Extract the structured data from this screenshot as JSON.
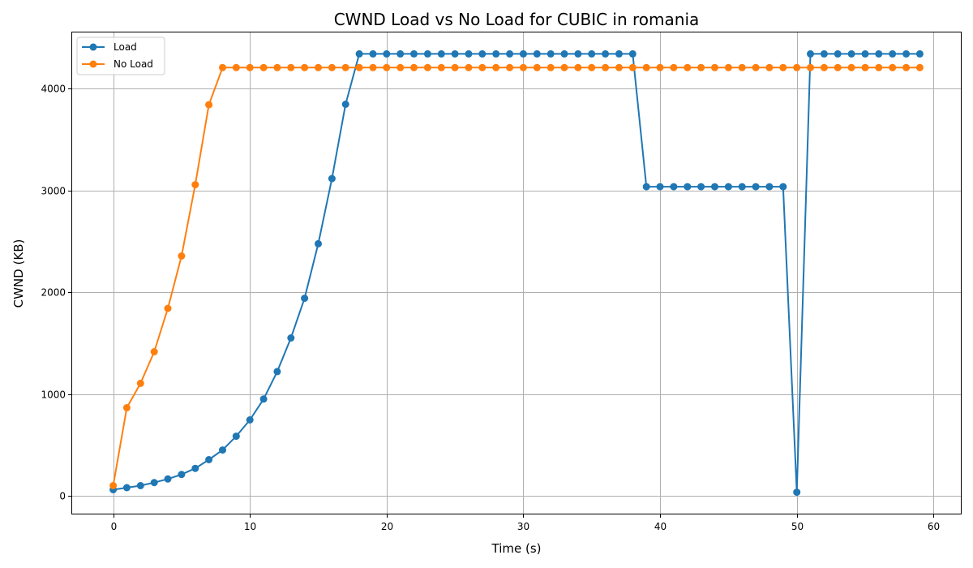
{
  "chart_data": {
    "type": "line",
    "title": "CWND Load vs No Load for CUBIC in romania",
    "xlabel": "Time (s)",
    "ylabel": "CWND (KB)",
    "xlim": [
      -3,
      62
    ],
    "ylim": [
      -175,
      4550
    ],
    "xticks": [
      0,
      10,
      20,
      30,
      40,
      50,
      60
    ],
    "yticks": [
      0,
      1000,
      2000,
      3000,
      4000
    ],
    "grid": true,
    "legend_position": "top-left",
    "series": [
      {
        "name": "Load",
        "color": "#1f77b4",
        "x": [
          0,
          1,
          2,
          3,
          4,
          5,
          6,
          7,
          8,
          9,
          10,
          11,
          12,
          13,
          14,
          15,
          16,
          17,
          18,
          19,
          20,
          21,
          22,
          23,
          24,
          25,
          26,
          27,
          28,
          29,
          30,
          31,
          32,
          33,
          34,
          35,
          36,
          37,
          38,
          39,
          40,
          41,
          42,
          43,
          44,
          45,
          46,
          47,
          48,
          49,
          50,
          51,
          52,
          53,
          54,
          55,
          56,
          57,
          58,
          59
        ],
        "y": [
          60,
          80,
          100,
          130,
          165,
          210,
          270,
          355,
          450,
          585,
          745,
          950,
          1220,
          1550,
          1940,
          2475,
          3115,
          3845,
          4340,
          4340,
          4340,
          4340,
          4340,
          4340,
          4340,
          4340,
          4340,
          4340,
          4340,
          4340,
          4340,
          4340,
          4340,
          4340,
          4340,
          4340,
          4340,
          4340,
          4340,
          3035,
          3035,
          3035,
          3035,
          3035,
          3035,
          3035,
          3035,
          3035,
          3035,
          3035,
          35,
          4340,
          4340,
          4340,
          4340,
          4340,
          4340,
          4340,
          4340,
          4340
        ]
      },
      {
        "name": "No Load",
        "color": "#ff7f0e",
        "x": [
          0,
          1,
          2,
          3,
          4,
          5,
          6,
          7,
          8,
          9,
          10,
          11,
          12,
          13,
          14,
          15,
          16,
          17,
          18,
          19,
          20,
          21,
          22,
          23,
          24,
          25,
          26,
          27,
          28,
          29,
          30,
          31,
          32,
          33,
          34,
          35,
          36,
          37,
          38,
          39,
          40,
          41,
          42,
          43,
          44,
          45,
          46,
          47,
          48,
          49,
          50,
          51,
          52,
          53,
          54,
          55,
          56,
          57,
          58,
          59
        ],
        "y": [
          100,
          865,
          1105,
          1415,
          1840,
          2355,
          3055,
          3840,
          4205,
          4205,
          4205,
          4205,
          4205,
          4205,
          4205,
          4205,
          4205,
          4205,
          4205,
          4205,
          4205,
          4205,
          4205,
          4205,
          4205,
          4205,
          4205,
          4205,
          4205,
          4205,
          4205,
          4205,
          4205,
          4205,
          4205,
          4205,
          4205,
          4205,
          4205,
          4205,
          4205,
          4205,
          4205,
          4205,
          4205,
          4205,
          4205,
          4205,
          4205,
          4205,
          4205,
          4205,
          4205,
          4205,
          4205,
          4205,
          4205,
          4205,
          4205,
          4205
        ]
      }
    ]
  }
}
